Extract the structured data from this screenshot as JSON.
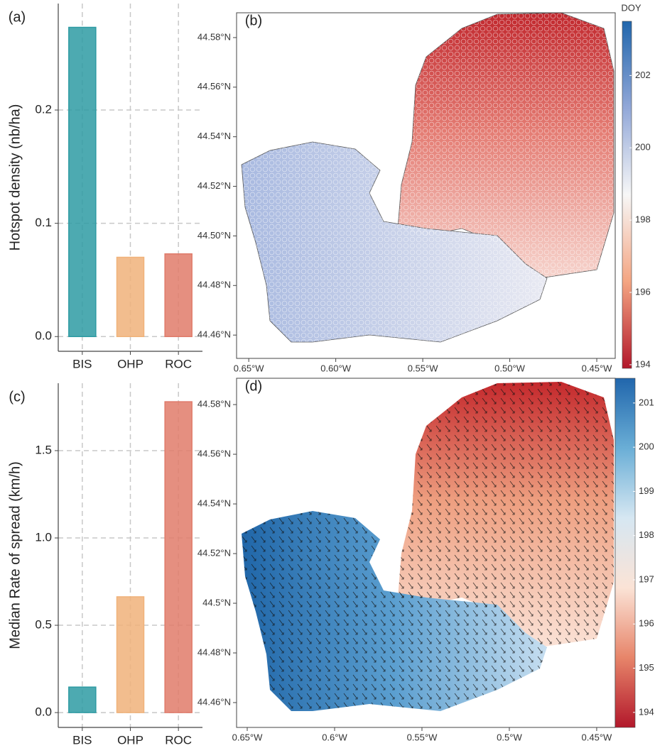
{
  "chart_data": [
    {
      "type": "bar",
      "panel_label": "(a)",
      "ylabel": "Hotspot density (nb/ha)",
      "categories": [
        "BIS",
        "OHP",
        "ROC"
      ],
      "values": [
        0.273,
        0.07,
        0.073
      ],
      "colors": [
        "#2e9ba3",
        "#f0b27a",
        "#e07b6a"
      ],
      "ylim": [
        -0.013,
        0.294
      ],
      "yticks": [
        {
          "value": 0,
          "label": "0.0"
        },
        0.1,
        0.2
      ],
      "grid": true
    },
    {
      "type": "map",
      "panel_label": "(b)",
      "xlim": [
        -0.657,
        -0.4394
      ],
      "ylim": [
        44.4506,
        44.59
      ],
      "xticks": [
        {
          "value": -0.65,
          "label": "0.65°W"
        },
        {
          "value": -0.6,
          "label": "0.60°W"
        },
        {
          "value": -0.55,
          "label": "0.55°W"
        },
        {
          "value": -0.5,
          "label": "0.50°W"
        },
        {
          "value": -0.45,
          "label": "0.45°W"
        }
      ],
      "yticks": [
        {
          "value": 44.46,
          "label": "44.46°N"
        },
        {
          "value": 44.48,
          "label": "44.48°N"
        },
        {
          "value": 44.5,
          "label": "44.50°N"
        },
        {
          "value": 44.52,
          "label": "44.52°N"
        },
        {
          "value": 44.54,
          "label": "44.54°N"
        },
        {
          "value": 44.56,
          "label": "44.56°N"
        },
        {
          "value": 44.58,
          "label": "44.58°N"
        }
      ],
      "colorbar": {
        "title": "DOY",
        "lim": [
          193.9,
          203.5
        ],
        "ticks": [
          194,
          196,
          198,
          200,
          202
        ],
        "colors": [
          "#b2182b",
          "#f4a582",
          "#f7f7f7",
          "#92a8d8",
          "#2166ac"
        ]
      }
    },
    {
      "type": "bar",
      "panel_label": "(c)",
      "ylabel": "Median Rate of spread (km/h)",
      "categories": [
        "BIS",
        "OHP",
        "ROC"
      ],
      "values": [
        0.146,
        0.663,
        1.78
      ],
      "colors": [
        "#2e9ba3",
        "#f0b27a",
        "#e07b6a"
      ],
      "ylim": [
        -0.085,
        1.886
      ],
      "yticks": [
        {
          "value": 0,
          "label": "0.0"
        },
        0.5,
        {
          "value": 1,
          "label": "1.0"
        },
        1.5
      ],
      "grid": true
    },
    {
      "type": "map",
      "panel_label": "(d)",
      "xlim": [
        -0.6561,
        -0.4394
      ],
      "ylim": [
        44.45,
        44.5906
      ],
      "xticks": [
        {
          "value": -0.65,
          "label": "0.65°W"
        },
        {
          "value": -0.6,
          "label": "0.6°W"
        },
        {
          "value": -0.55,
          "label": "0.55°W"
        },
        {
          "value": -0.5,
          "label": "0.5°W"
        },
        {
          "value": -0.45,
          "label": "0.45°W"
        }
      ],
      "yticks": [
        {
          "value": 44.46,
          "label": "44.46°N"
        },
        {
          "value": 44.48,
          "label": "44.48°N"
        },
        {
          "value": 44.5,
          "label": "44.5°N"
        },
        {
          "value": 44.52,
          "label": "44.52°N"
        },
        {
          "value": 44.54,
          "label": "44.54°N"
        },
        {
          "value": 44.56,
          "label": "44.56°N"
        },
        {
          "value": 44.58,
          "label": "44.58°N"
        }
      ],
      "colorbar": {
        "lim": [
          193.66,
          201.56
        ],
        "ticks": [
          194,
          195,
          196,
          197,
          198,
          199,
          200,
          201
        ],
        "colors": [
          "#b2182b",
          "#e7856a",
          "#fbe3d6",
          "#d6e7f2",
          "#6aaed6",
          "#2166ac"
        ]
      }
    }
  ]
}
